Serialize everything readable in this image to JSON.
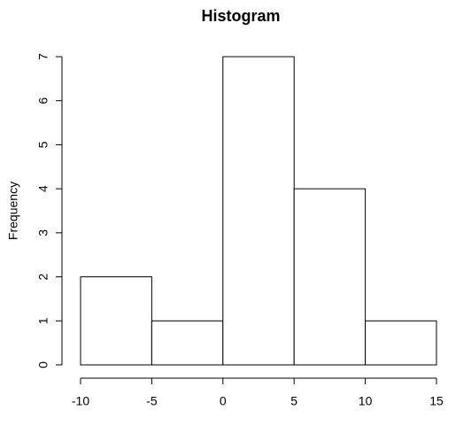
{
  "chart_data": {
    "type": "histogram",
    "title": "Histogram",
    "y_label": "Frequency",
    "bins": [
      -10,
      -5,
      0,
      5,
      10,
      15
    ],
    "counts": [
      2,
      1,
      7,
      4,
      1
    ],
    "xlim": [
      -10,
      15
    ],
    "xticks": [
      -10,
      -5,
      0,
      5,
      10,
      15
    ],
    "ylim": [
      0,
      7
    ],
    "yticks": [
      0,
      1,
      2,
      3,
      4,
      5,
      6,
      7
    ],
    "bar_fill": "#ffffff",
    "bar_stroke": "#000000"
  }
}
